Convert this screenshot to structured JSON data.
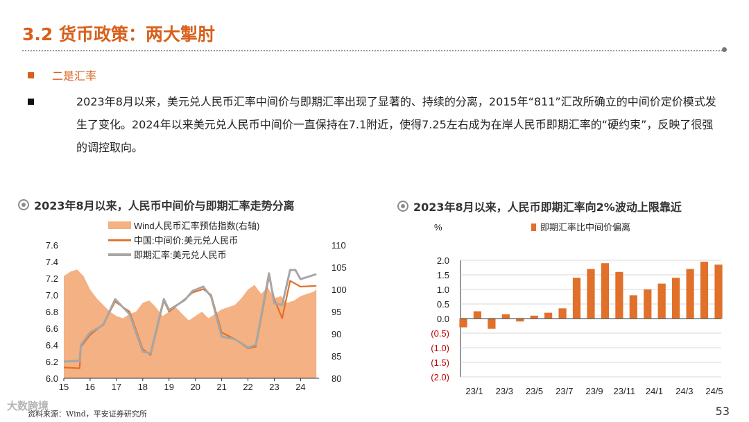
{
  "header": {
    "title": "3.2 货币政策：两大掣肘"
  },
  "section": {
    "subheading": "二是汇率",
    "paragraph": "2023年8月以来，美元兑人民币汇率中间价与即期汇率出现了显著的、持续的分离，2015年“811”汇改所确立的中间价定价模式发生了变化。2024年以来美元兑人民币中间价一直保持在7.1附近，使得7.25左右成为在岸人民币即期汇率的“硬约束”，反映了很强的调控取向。"
  },
  "left_chart": {
    "title": "2023年8月以来，人民币中间价与即期汇率走势分离"
  },
  "right_chart": {
    "title": "2023年8月以来，人民币即期汇率向2%波动上限靠近"
  },
  "footer": {
    "source": "资料来源：Wind，平安证券研究所",
    "page_number": "53",
    "watermark": "大数跨境"
  },
  "colors": {
    "accent": "#d8601a",
    "area_fill": "#f4b183",
    "central_parity": "#e0702a",
    "spot": "#a6a6a6",
    "bar": "#e0702a",
    "negative_tick": "#c00000"
  },
  "chart_data": [
    {
      "type": "line",
      "x_tick_labels": [
        "15",
        "16",
        "17",
        "18",
        "19",
        "20",
        "21",
        "22",
        "23",
        "24"
      ],
      "y_left_ticks": [
        "6.0",
        "6.2",
        "6.4",
        "6.6",
        "6.8",
        "7.0",
        "7.2",
        "7.4",
        "7.6"
      ],
      "ylim_left": [
        6.0,
        7.6
      ],
      "y_right_ticks": [
        "80",
        "85",
        "90",
        "95",
        "100",
        "105",
        "110"
      ],
      "ylim_right": [
        80,
        110
      ],
      "xlim": [
        2015.0,
        2024.7
      ],
      "legend": [
        "Wind人民币汇率预估指数(右轴)",
        "中国:中间价:美元兑人民币",
        "即期汇率:美元兑人民币"
      ],
      "legend_position": "top-left",
      "series": [
        {
          "name": "Wind人民币汇率预估指数(右轴)",
          "kind": "area",
          "axis": "right",
          "x": [
            2015.0,
            2015.25,
            2015.5,
            2015.75,
            2016.0,
            2016.25,
            2016.5,
            2016.75,
            2017.0,
            2017.25,
            2017.5,
            2017.75,
            2018.0,
            2018.25,
            2018.5,
            2018.75,
            2019.0,
            2019.25,
            2019.5,
            2019.75,
            2020.0,
            2020.25,
            2020.5,
            2020.75,
            2021.0,
            2021.25,
            2021.5,
            2021.75,
            2022.0,
            2022.25,
            2022.5,
            2022.75,
            2023.0,
            2023.25,
            2023.5,
            2023.75,
            2024.0,
            2024.25,
            2024.5,
            2024.6
          ],
          "y": [
            103,
            104,
            104.5,
            103,
            100,
            98,
            96.5,
            95,
            94,
            93.5,
            94.5,
            95,
            97,
            97.5,
            96,
            94,
            95,
            96,
            94.5,
            93,
            94,
            95,
            93.5,
            94.5,
            95.5,
            96,
            96.5,
            98,
            100,
            101,
            99,
            100.5,
            98,
            98.5,
            97,
            97.5,
            98.5,
            99,
            99.5,
            100
          ]
        },
        {
          "name": "中国:中间价:美元兑人民币",
          "kind": "line",
          "axis": "left",
          "x": [
            2015.0,
            2015.6,
            2015.65,
            2016.0,
            2016.5,
            2016.95,
            2017.5,
            2018.0,
            2018.3,
            2018.8,
            2019.0,
            2019.6,
            2019.9,
            2020.3,
            2020.6,
            2021.0,
            2021.5,
            2022.0,
            2022.3,
            2022.8,
            2023.0,
            2023.3,
            2023.6,
            2024.0,
            2024.6
          ],
          "y": [
            6.13,
            6.12,
            6.38,
            6.52,
            6.65,
            6.92,
            6.8,
            6.35,
            6.28,
            6.93,
            6.8,
            6.95,
            7.03,
            7.07,
            7.0,
            6.55,
            6.47,
            6.36,
            6.38,
            7.22,
            6.95,
            6.72,
            7.17,
            7.1,
            7.11
          ]
        },
        {
          "name": "即期汇率:美元兑人民币",
          "kind": "line",
          "axis": "left",
          "x": [
            2015.0,
            2015.6,
            2015.65,
            2016.0,
            2016.5,
            2016.95,
            2017.5,
            2018.0,
            2018.3,
            2018.8,
            2019.0,
            2019.6,
            2019.9,
            2020.3,
            2020.6,
            2021.0,
            2021.5,
            2022.0,
            2022.3,
            2022.8,
            2023.0,
            2023.3,
            2023.6,
            2023.8,
            2024.0,
            2024.6
          ],
          "y": [
            6.2,
            6.21,
            6.4,
            6.55,
            6.64,
            6.95,
            6.77,
            6.32,
            6.3,
            6.95,
            6.82,
            6.94,
            7.05,
            7.1,
            6.98,
            6.5,
            6.47,
            6.37,
            6.4,
            7.26,
            6.9,
            6.88,
            7.3,
            7.3,
            7.19,
            7.25
          ]
        }
      ]
    },
    {
      "type": "bar",
      "ylabel": "%",
      "legend": [
        "即期汇率比中间价偏离"
      ],
      "legend_position": "top",
      "y_ticks": [
        "(2.0)",
        "(1.5)",
        "(1.0)",
        "(0.5)",
        "0.0",
        "0.5",
        "1.0",
        "1.5",
        "2.0"
      ],
      "ylim": [
        -2.0,
        2.0
      ],
      "x_tick_labels": [
        "23/1",
        "23/3",
        "23/5",
        "23/7",
        "23/9",
        "23/11",
        "24/1",
        "24/3",
        "24/5"
      ],
      "xlim": [
        0,
        18
      ],
      "series": [
        {
          "name": "即期汇率比中间价偏离",
          "x": [
            0,
            1,
            2,
            3,
            4,
            5,
            6,
            7,
            8,
            9,
            10,
            11,
            12,
            13,
            14,
            15,
            16,
            17,
            18
          ],
          "y": [
            -0.3,
            0.25,
            -0.35,
            0.15,
            -0.1,
            0.1,
            0.2,
            0.35,
            1.4,
            1.7,
            1.9,
            1.6,
            0.8,
            1.0,
            1.2,
            1.4,
            1.7,
            1.95,
            1.85
          ]
        }
      ]
    }
  ]
}
